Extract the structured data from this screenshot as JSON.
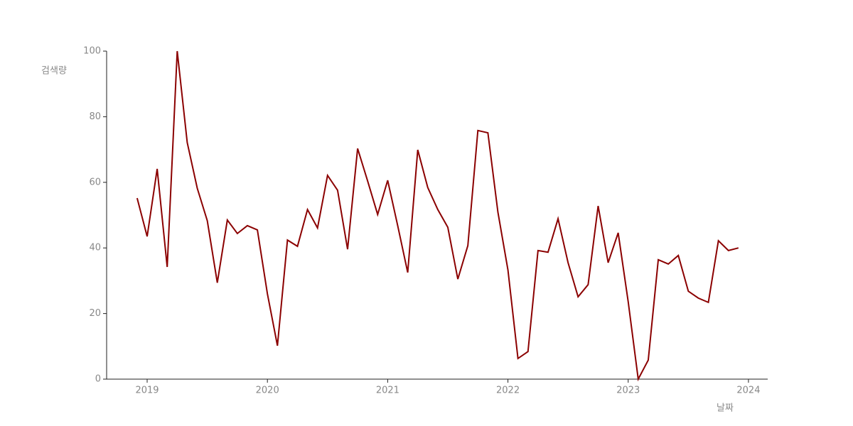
{
  "chart_data": {
    "type": "line",
    "xlabel": "날짜",
    "ylabel": "검색량",
    "x": [
      "2018-12",
      "2019-01",
      "2019-02",
      "2019-03",
      "2019-04",
      "2019-05",
      "2019-06",
      "2019-07",
      "2019-08",
      "2019-09",
      "2019-10",
      "2019-11",
      "2019-12",
      "2020-01",
      "2020-02",
      "2020-03",
      "2020-04",
      "2020-05",
      "2020-06",
      "2020-07",
      "2020-08",
      "2020-09",
      "2020-10",
      "2020-11",
      "2020-12",
      "2021-01",
      "2021-02",
      "2021-03",
      "2021-04",
      "2021-05",
      "2021-06",
      "2021-07",
      "2021-08",
      "2021-09",
      "2021-10",
      "2021-11",
      "2021-12",
      "2022-01",
      "2022-02",
      "2022-03",
      "2022-04",
      "2022-05",
      "2022-06",
      "2022-07",
      "2022-08",
      "2022-09",
      "2022-10",
      "2022-11",
      "2022-12",
      "2023-01",
      "2023-02",
      "2023-03",
      "2023-04",
      "2023-05",
      "2023-06",
      "2023-07",
      "2023-08",
      "2023-09",
      "2023-10",
      "2023-11",
      "2023-12"
    ],
    "values": [
      55.2,
      43.5,
      64.1,
      34.2,
      100,
      72.1,
      58.2,
      48.3,
      29.4,
      48.5,
      44.4,
      46.8,
      45.5,
      26,
      10.2,
      42.4,
      40.5,
      51.7,
      46.1,
      62.1,
      57.6,
      39.6,
      70.3,
      60.4,
      50.2,
      60.6,
      46.8,
      32.5,
      69.9,
      58.4,
      51.7,
      46.3,
      30.5,
      40.7,
      75.8,
      75.1,
      50.9,
      33.3,
      6.3,
      8.4,
      39.2,
      38.7,
      48.9,
      35.5,
      25.1,
      28.8,
      52.8,
      35.5,
      44.6,
      23.6,
      0,
      5.8,
      36.4,
      35.1,
      37.7,
      26.8,
      24.7,
      23.4,
      42.2,
      39.2,
      40
    ],
    "color": "#8b0000",
    "xlim": [
      2018.663,
      2024.16
    ],
    "xticks": [
      2019,
      2020,
      2021,
      2022,
      2023,
      2024
    ],
    "ylim": [
      0,
      100
    ],
    "yticks": [
      0,
      20,
      40,
      60,
      80,
      100
    ]
  }
}
